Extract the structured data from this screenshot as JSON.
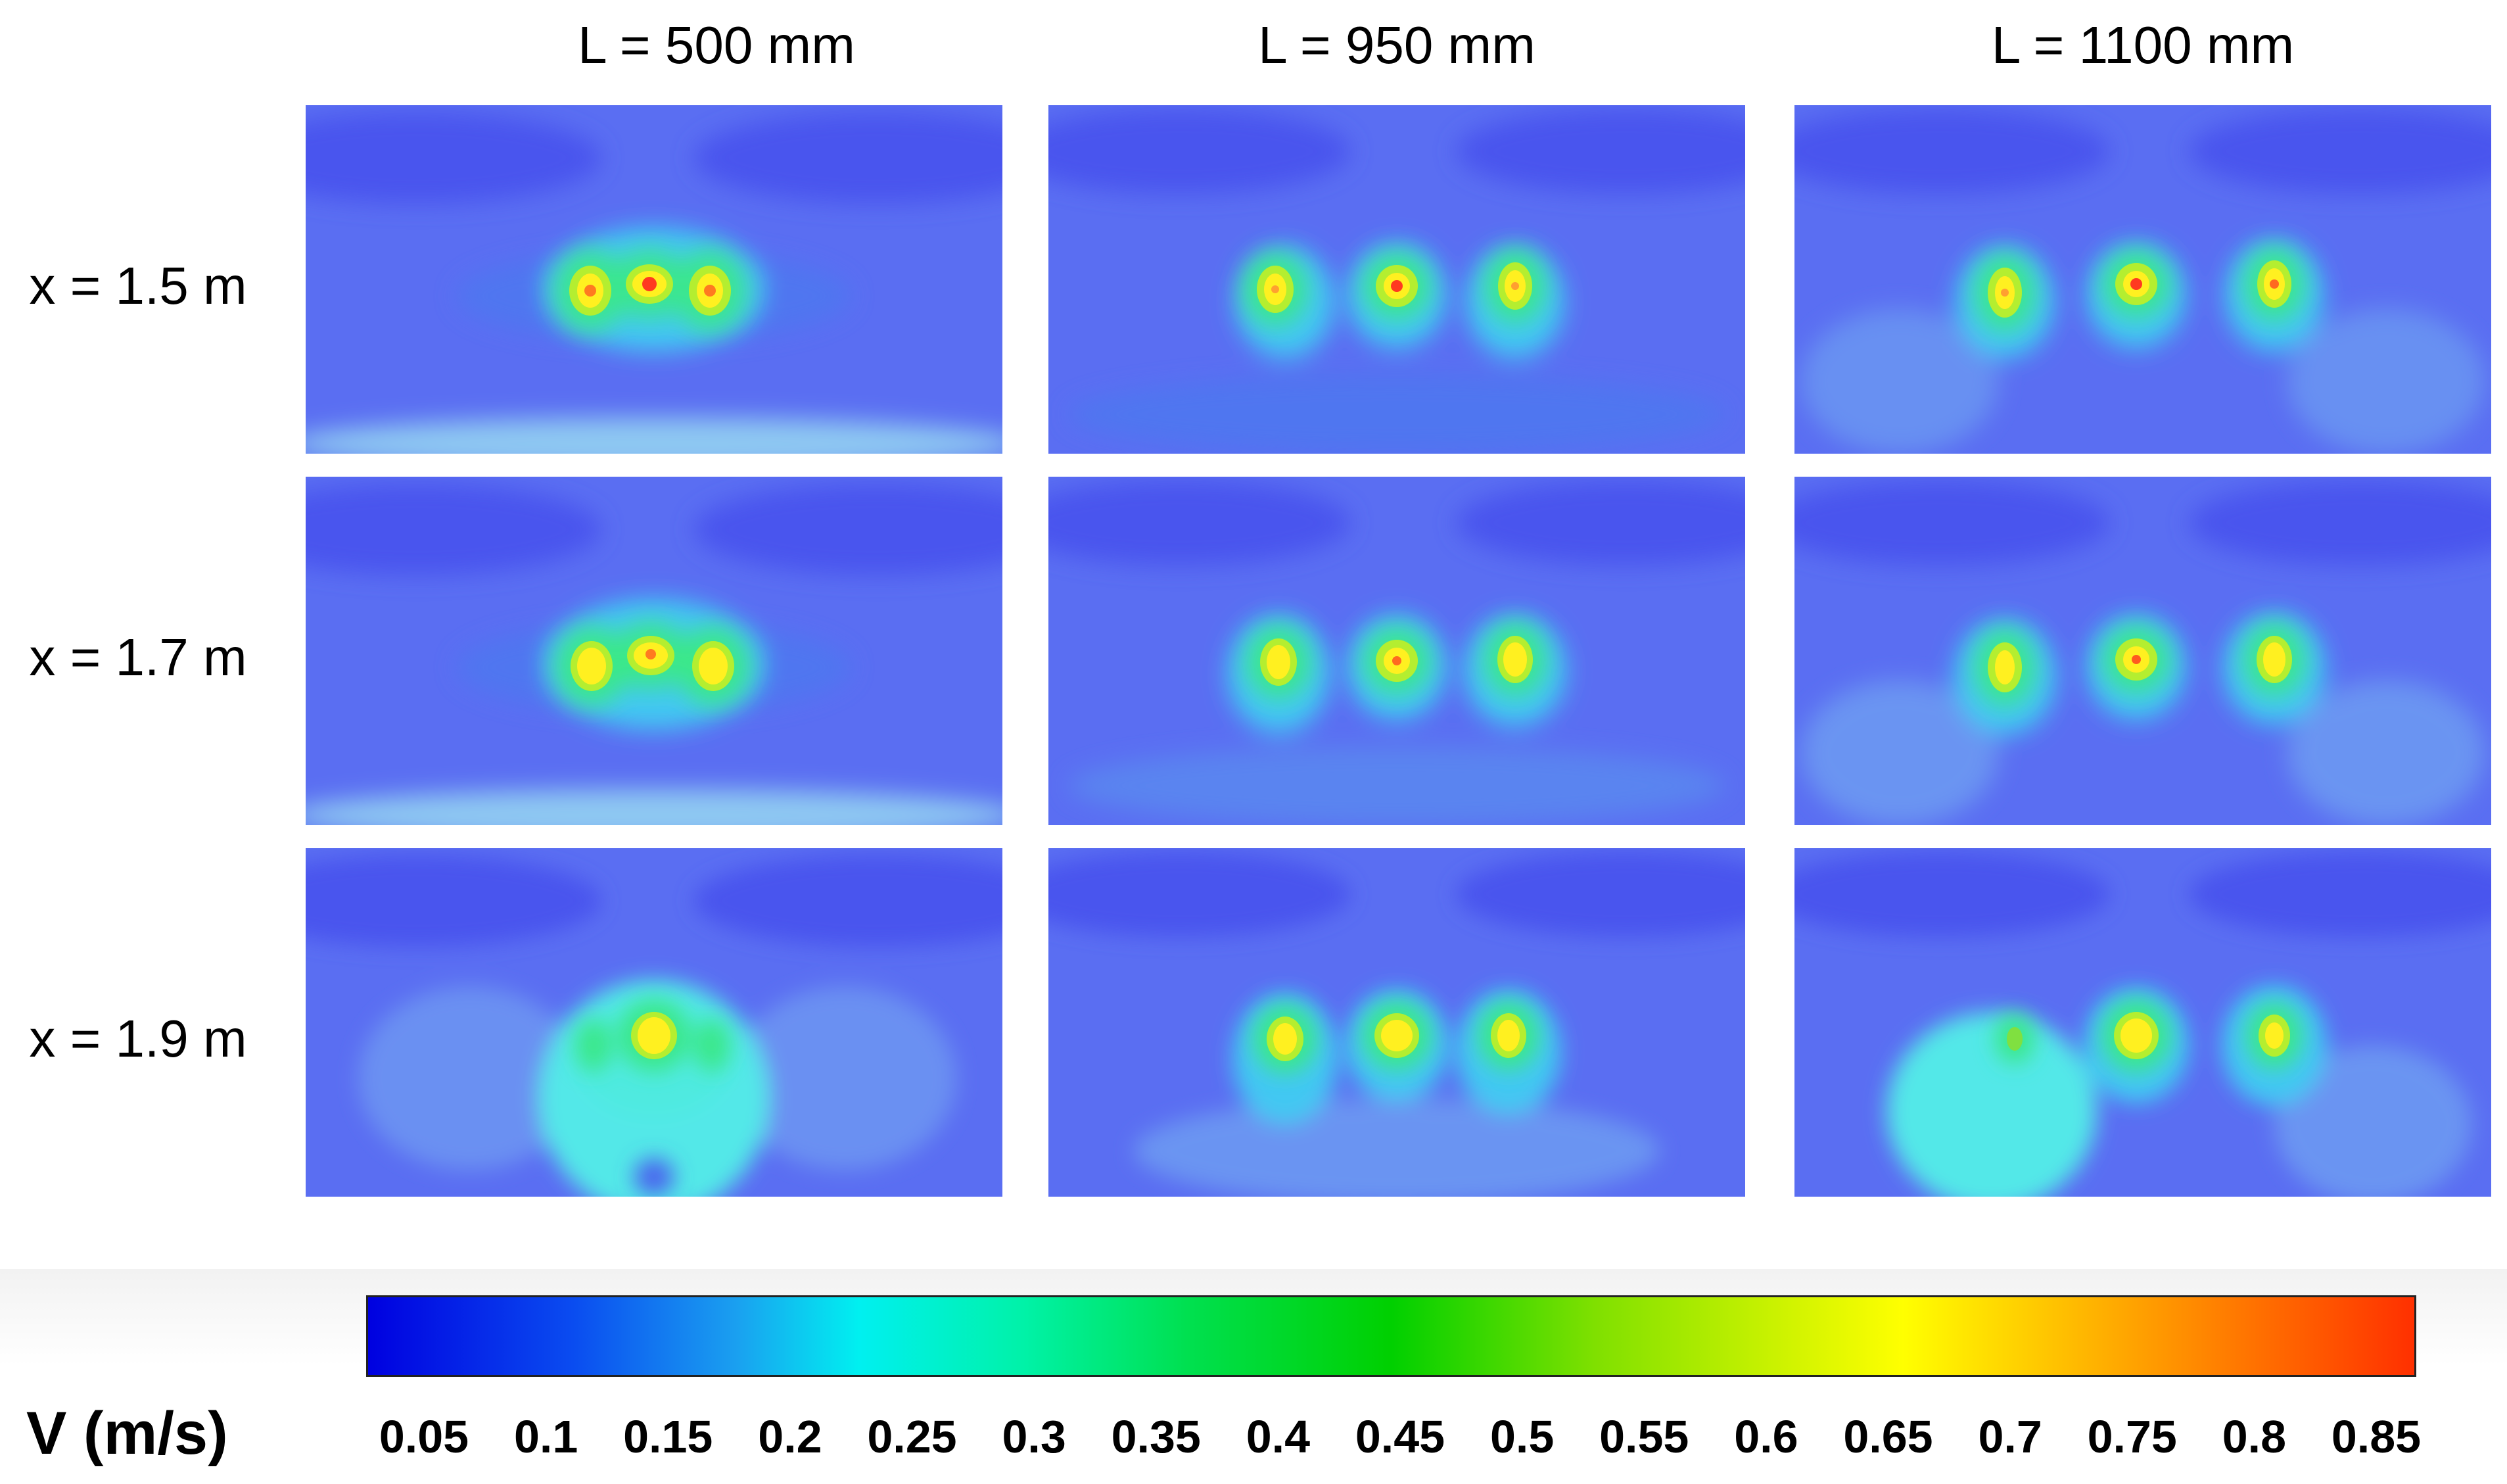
{
  "column_labels": [
    "L = 500 mm",
    "L = 950 mm",
    "L = 1100 mm"
  ],
  "row_labels": [
    "x = 1.5 m",
    "x = 1.7 m",
    "x = 1.9 m"
  ],
  "colorbar": {
    "title": "V (m/s)",
    "ticks": [
      "0.05",
      "0.1",
      "0.15",
      "0.2",
      "0.25",
      "0.3",
      "0.35",
      "0.4",
      "0.45",
      "0.5",
      "0.55",
      "0.6",
      "0.65",
      "0.7",
      "0.75",
      "0.8",
      "0.85"
    ],
    "colors": {
      "min": "#0000e0",
      "low": "#1aa0f0",
      "mid_low": "#00f0f0",
      "mid": "#00d000",
      "mid_high": "#ffff00",
      "high": "#ffa500",
      "max": "#ff3000"
    }
  },
  "field_colors": {
    "background": "#5a6ef2",
    "dark_band": "#4a54ee",
    "halo": "#42c8f2",
    "ring_outer": "#3aeaea",
    "ring_mid": "#3ae88a",
    "ring_inner": "#b4ee30",
    "core": "#fff020",
    "peak": "#ff3a20",
    "plume": "#52e8e8"
  }
}
